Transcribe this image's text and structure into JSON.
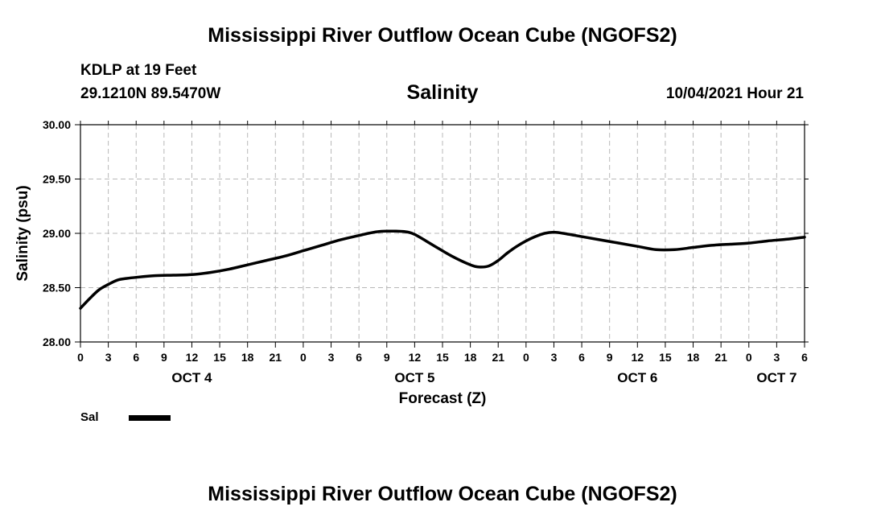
{
  "header": {
    "title": "Mississippi River Outflow Ocean Cube (NGOFS2)",
    "station": "KDLP at 19 Feet",
    "coords": "29.1210N  89.5470W",
    "variable": "Salinity",
    "datetime": "10/04/2021 Hour 21"
  },
  "footer": {
    "title": "Mississippi River Outflow Ocean Cube (NGOFS2)"
  },
  "legend": {
    "label": "Sal",
    "color": "#000000"
  },
  "chart_data": {
    "type": "line",
    "title": "Salinity",
    "xlabel": "Forecast (Z)",
    "ylabel": "Salinity (psu)",
    "xlim": [
      0,
      78
    ],
    "ylim": [
      28.0,
      30.0
    ],
    "grid": true,
    "yticks": [
      28.0,
      28.5,
      29.0,
      29.5,
      30.0
    ],
    "ytick_labels": [
      "28.00",
      "28.50",
      "29.00",
      "29.50",
      "30.00"
    ],
    "xtick_labels": [
      "0",
      "3",
      "6",
      "9",
      "12",
      "15",
      "18",
      "21",
      "0",
      "3",
      "6",
      "9",
      "12",
      "15",
      "18",
      "21",
      "0",
      "3",
      "6",
      "9",
      "12",
      "15",
      "18",
      "21",
      "0",
      "3",
      "6"
    ],
    "day_labels": [
      {
        "label": "OCT 4",
        "hours": 12
      },
      {
        "label": "OCT 5",
        "hours": 36
      },
      {
        "label": "OCT 6",
        "hours": 60
      },
      {
        "label": "OCT 7",
        "hours": 75
      }
    ],
    "series": [
      {
        "name": "Sal",
        "x": [
          0,
          1,
          2,
          3,
          4,
          5,
          6,
          8,
          10,
          12,
          14,
          16,
          18,
          20,
          22,
          24,
          26,
          28,
          30,
          31,
          32,
          33,
          34,
          35,
          36,
          38,
          40,
          42,
          43,
          44,
          45,
          46,
          47,
          48,
          49,
          50,
          51,
          52,
          54,
          56,
          58,
          60,
          62,
          64,
          66,
          68,
          70,
          72,
          74,
          76,
          78
        ],
        "values": [
          28.31,
          28.4,
          28.48,
          28.53,
          28.57,
          28.585,
          28.595,
          28.61,
          28.615,
          28.62,
          28.64,
          28.67,
          28.71,
          28.75,
          28.79,
          28.84,
          28.89,
          28.94,
          28.98,
          29.0,
          29.015,
          29.02,
          29.02,
          29.015,
          28.99,
          28.89,
          28.79,
          28.71,
          28.69,
          28.7,
          28.75,
          28.82,
          28.88,
          28.93,
          28.97,
          29.0,
          29.01,
          29.0,
          28.97,
          28.94,
          28.91,
          28.88,
          28.85,
          28.85,
          28.87,
          28.89,
          28.9,
          28.91,
          28.93,
          28.945,
          28.965
        ]
      }
    ]
  }
}
